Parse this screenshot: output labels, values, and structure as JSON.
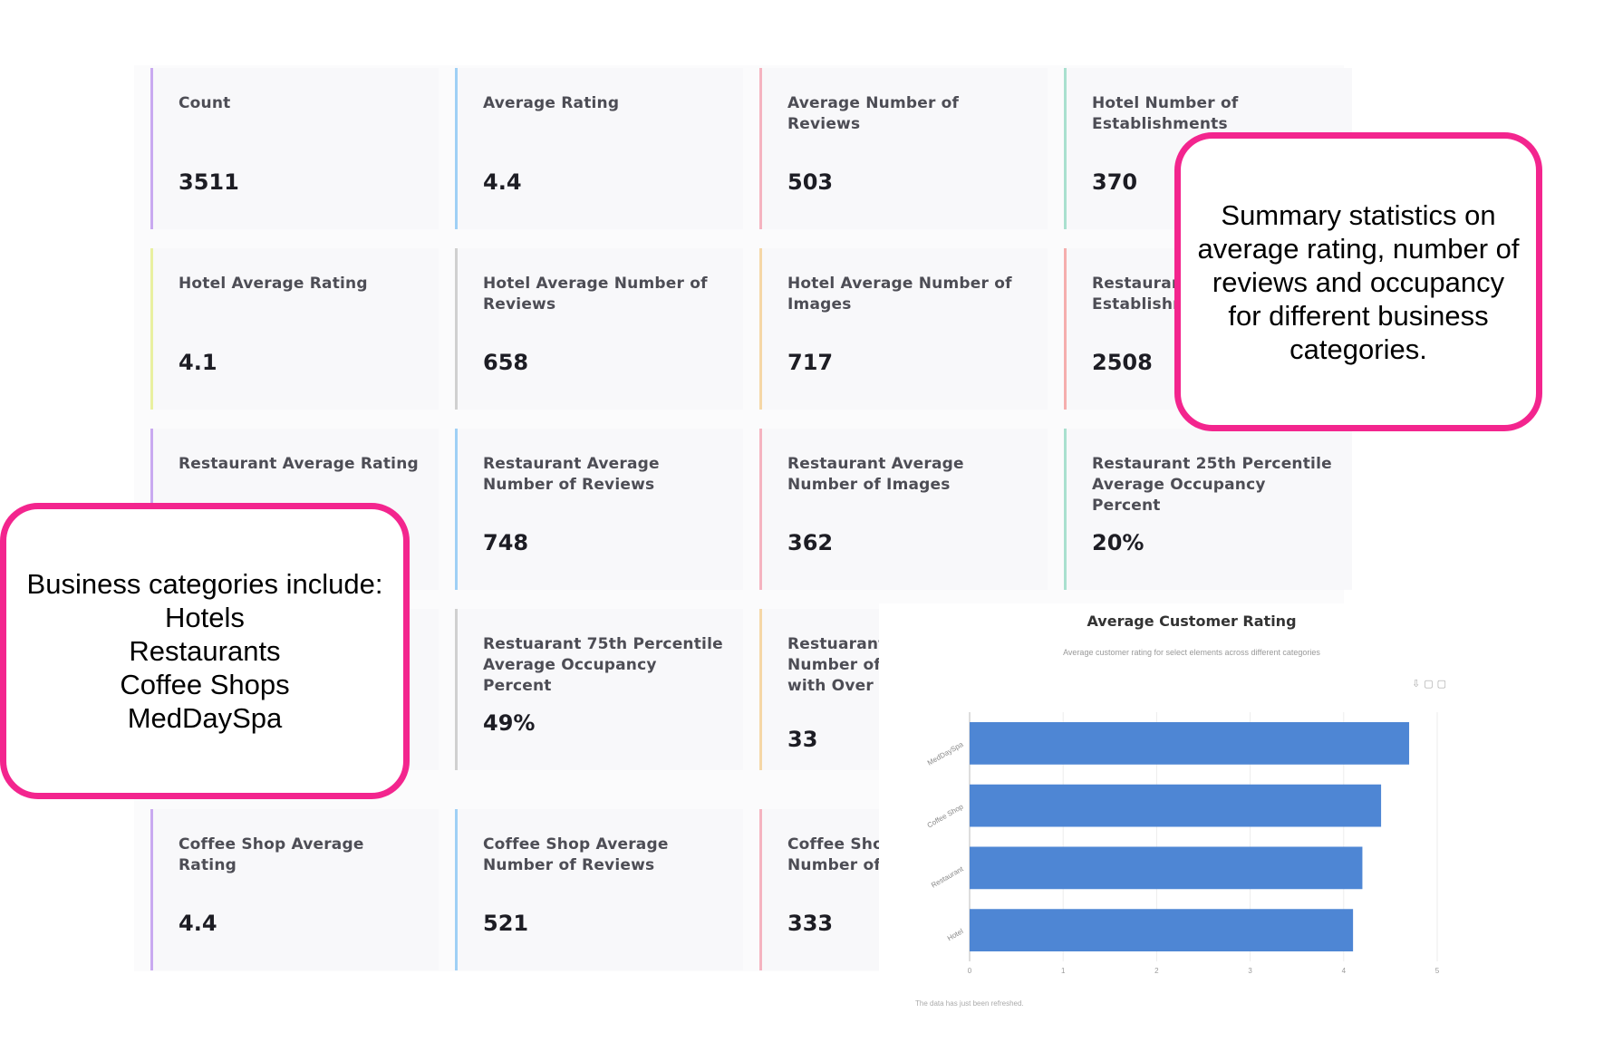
{
  "cards": [
    {
      "label": "Count",
      "value": "3511",
      "accent": "#c9a9f0"
    },
    {
      "label": "Average Rating",
      "value": "4.4",
      "accent": "#9fd0f5"
    },
    {
      "label": "Average Number of Reviews",
      "value": "503",
      "accent": "#f5b3c0"
    },
    {
      "label": "Hotel Number of Establishments",
      "value": "370",
      "accent": "#a9e0cf"
    },
    {
      "label": "Hotel Average Rating",
      "value": "4.1",
      "accent": "#e9f0a0"
    },
    {
      "label": "Hotel Average Number of Reviews",
      "value": "658",
      "accent": "#d0d0d0"
    },
    {
      "label": "Hotel Average Number of Images",
      "value": "717",
      "accent": "#f5d7a6"
    },
    {
      "label": "Restaurant Number of Establishments",
      "value": "2508",
      "accent": "#f5aeae"
    },
    {
      "label": "Restaurant Average Rating",
      "value": "",
      "accent": "#c9a9f0"
    },
    {
      "label": "Restaurant Average Number of Reviews",
      "value": "748",
      "accent": "#9fd0f5"
    },
    {
      "label": "Restaurant Average Number of Images",
      "value": "362",
      "accent": "#f5b3c0"
    },
    {
      "label": "Restaurant 25th Percentile Average Occupancy Percent",
      "value": "20%",
      "accent": "#a9e0cf"
    },
    {
      "label": "",
      "value": "",
      "accent": "#e9f0a0"
    },
    {
      "label": "Restuarant 75th Percentile Average Occupancy Percent",
      "value": "49%",
      "accent": "#d0d0d0"
    },
    {
      "label": "Restuarant Average Number of Days in a Week with Over 50% Occupancy",
      "value": "33",
      "accent": "#f5d7a6"
    },
    {
      "label": "Coffee Shop Average Rating",
      "value": "4.4",
      "accent": "#c9a9f0"
    },
    {
      "label": "Coffee Shop Average Number of Reviews",
      "value": "521",
      "accent": "#9fd0f5"
    },
    {
      "label": "Coffee Shop Average Number of Images",
      "value": "333",
      "accent": "#f5b3c0"
    }
  ],
  "chart_data": {
    "type": "bar",
    "orientation": "horizontal",
    "title": "Average Customer Rating",
    "subtitle": "Average customer rating for select elements across different categories",
    "categories": [
      "MedDaySpa",
      "Coffee Shop",
      "Restaurant",
      "Hotel"
    ],
    "values": [
      4.7,
      4.4,
      4.2,
      4.1
    ],
    "xlim": [
      0,
      5
    ],
    "xticks": [
      0,
      1,
      2,
      3,
      4,
      5
    ],
    "grid": true,
    "bar_color": "#4e86d4",
    "footer": "The data has just been refreshed."
  },
  "chart_tools_icons": [
    "export-icon",
    "expand-icon",
    "fullscreen-icon"
  ],
  "callouts": {
    "summary": "Summary statistics on average rating, number of reviews and occupancy for different business categories.",
    "categories_heading": "Business categories include:",
    "categories_list": [
      "Hotels",
      "Restaurants",
      "Coffee Shops",
      "MedDaySpa"
    ]
  },
  "colors": {
    "callout_border": "#f3258e"
  }
}
